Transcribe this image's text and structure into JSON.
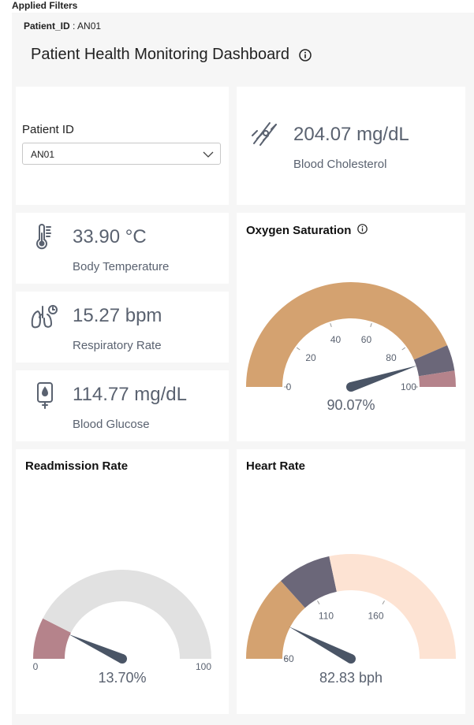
{
  "applied_filters_label": "Applied Filters",
  "filter_chip": {
    "field": "Patient_ID",
    "separator": " : ",
    "value": "AN01"
  },
  "dashboard_title": "Patient Health Monitoring Dashboard",
  "patient_filter": {
    "label": "Patient ID",
    "selected": "AN01"
  },
  "kpis": {
    "cholesterol": {
      "value": "204.07 mg/dL",
      "label": "Blood Cholesterol",
      "icon": "blood-vessel-icon"
    },
    "temperature": {
      "value": "33.90 °C",
      "label": "Body Temperature",
      "icon": "thermometer-icon"
    },
    "respiratory": {
      "value": "15.27 bpm",
      "label": "Respiratory Rate",
      "icon": "lungs-icon"
    },
    "glucose": {
      "value": "114.77 mg/dL",
      "label": "Blood Glucose",
      "icon": "glucose-meter-icon"
    }
  },
  "colors": {
    "tan": "#d4a270",
    "slate": "#6b6779",
    "rose": "#b5838b",
    "peach": "#fde3d3",
    "grey": "#e1e1e1",
    "needle": "#4a5566",
    "text": "#5a6270"
  },
  "gauges": {
    "oxygen": {
      "title": "Oxygen Saturation",
      "min": 0,
      "max": 100,
      "ticks": [
        "0",
        "20",
        "40",
        "60",
        "80",
        "100"
      ],
      "tick_values": [
        0,
        20,
        40,
        60,
        80,
        100
      ],
      "bands": [
        {
          "from": 0,
          "to": 87,
          "color": "#d4a270"
        },
        {
          "from": 87,
          "to": 95,
          "color": "#6b6779"
        },
        {
          "from": 95,
          "to": 100,
          "color": "#b5838b"
        }
      ],
      "value": 90.07,
      "display": "90.07%"
    },
    "readmission": {
      "title": "Readmission Rate",
      "min": 0,
      "max": 100,
      "ticks": [
        "0",
        "100"
      ],
      "tick_values": [
        0,
        100
      ],
      "bands": [
        {
          "from": 0,
          "to": 15,
          "color": "#b5838b"
        },
        {
          "from": 15,
          "to": 100,
          "color": "#e1e1e1"
        }
      ],
      "value": 13.7,
      "display": "13.70%"
    },
    "heart": {
      "title": "Heart Rate",
      "min": 60,
      "max": 210,
      "ticks": [
        "60",
        "110",
        "160"
      ],
      "tick_values": [
        60,
        110,
        160
      ],
      "bands": [
        {
          "from": 60,
          "to": 100,
          "color": "#d4a270"
        },
        {
          "from": 100,
          "to": 125,
          "color": "#6b6779"
        },
        {
          "from": 125,
          "to": 210,
          "color": "#fde3d3"
        }
      ],
      "value": 82.83,
      "display": "82.83 bph"
    }
  }
}
